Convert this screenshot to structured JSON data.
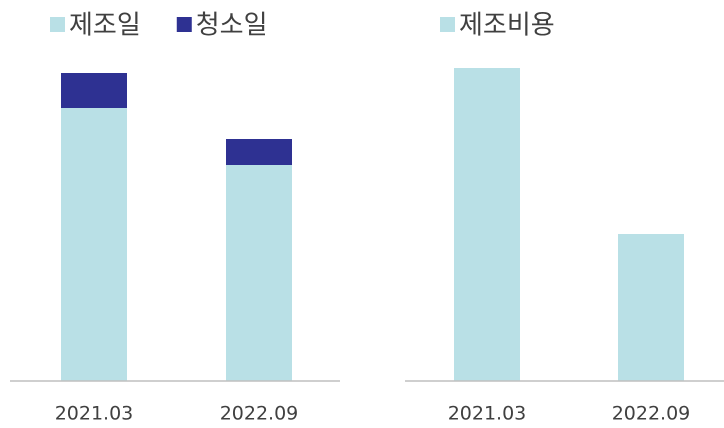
{
  "chart_data": [
    {
      "type": "bar",
      "stacked": true,
      "categories": [
        "2021.03",
        "2022.09"
      ],
      "series": [
        {
          "name": "제조일",
          "color": "#b9e0e6",
          "values": [
            273,
            216
          ]
        },
        {
          "name": "청소일",
          "color": "#2e3192",
          "values": [
            35,
            26
          ]
        }
      ],
      "ylim": [
        0,
        330
      ]
    },
    {
      "type": "bar",
      "categories": [
        "2021.03",
        "2022.09"
      ],
      "series": [
        {
          "name": "제조비용",
          "color": "#b9e0e6",
          "values": [
            313,
            147
          ]
        }
      ],
      "ylim": [
        0,
        330
      ]
    }
  ]
}
